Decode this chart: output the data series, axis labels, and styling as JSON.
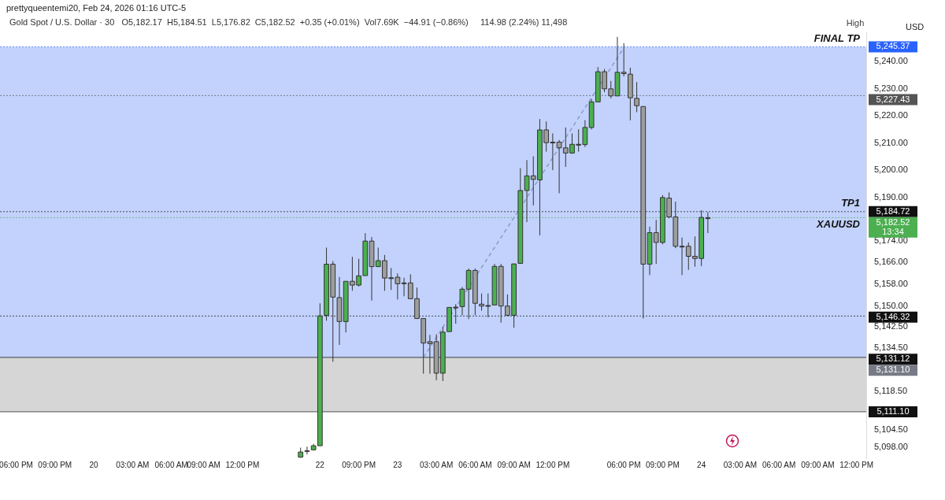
{
  "chart_data": {
    "type": "candlestick",
    "title": "Gold Spot / U.S. Dollar · 30",
    "subtitle": "O5,182.17  H5,184.51  L5,176.82  C5,182.52  +0.35 (+0.01%)  Vol7.69K  −44.91 (−0.86%)     114.98 (2.24%) 11,498",
    "ylabel": "USD",
    "categories": [
      null,
      null,
      "06:00 PM",
      null,
      null,
      null,
      null,
      null,
      "09:00 PM",
      null,
      null,
      null,
      null,
      null,
      "20",
      null,
      null,
      null,
      null,
      null,
      "03:00 AM",
      null,
      null,
      null,
      null,
      null,
      "06:00 AM",
      null,
      null,
      null,
      null,
      "09:00 AM",
      null,
      null,
      null,
      null,
      null,
      "12:00 PM",
      null,
      null,
      null,
      null,
      null,
      null,
      null,
      null,
      null,
      null,
      null,
      "22",
      null,
      null,
      null,
      null,
      null,
      "09:00 PM",
      null,
      null,
      null,
      null,
      null,
      "23",
      null,
      null,
      null,
      null,
      null,
      "03:00 AM",
      null,
      null,
      null,
      null,
      null,
      "06:00 AM",
      null,
      null,
      null,
      null,
      null,
      "09:00 AM",
      null,
      null,
      null,
      null,
      null,
      "12:00 PM",
      null,
      null,
      null,
      null,
      null,
      null,
      null,
      null,
      null,
      null,
      "06:00 PM",
      null,
      null,
      null,
      null,
      null,
      "09:00 PM",
      null,
      null,
      null,
      null,
      null,
      "24",
      null,
      null,
      null,
      null,
      null,
      "03:00 AM",
      null,
      null,
      null,
      null,
      null,
      "06:00 AM",
      null,
      null,
      null,
      null,
      null,
      "09:00 AM",
      null,
      null,
      null,
      null,
      null,
      "12:00 PM",
      null
    ],
    "ohlc": [
      null,
      null,
      null,
      null,
      null,
      null,
      null,
      null,
      null,
      null,
      null,
      null,
      null,
      null,
      null,
      null,
      null,
      null,
      null,
      null,
      null,
      null,
      null,
      null,
      null,
      null,
      null,
      null,
      null,
      null,
      null,
      null,
      null,
      null,
      null,
      null,
      null,
      null,
      null,
      null,
      null,
      null,
      null,
      null,
      null,
      null,
      [
        5094.4,
        5097.9,
        5094.2,
        5096.3
      ],
      [
        5096.8,
        5098.3,
        5095.4,
        5096.8
      ],
      [
        5097.1,
        5099.3,
        5097.1,
        5098.6
      ],
      [
        5098.6,
        5151,
        5098.6,
        5146.4
      ],
      [
        5146.6,
        5171.5,
        5144.6,
        5165.4
      ],
      [
        5165.4,
        5166.5,
        5129.5,
        5153.3
      ],
      [
        5153.1,
        5160.7,
        5135.7,
        5144.3
      ],
      [
        5144.3,
        5159.1,
        5140.3,
        5159.1
      ],
      [
        5159.1,
        5168.1,
        5155.6,
        5157.7
      ],
      [
        5157.7,
        5167.4,
        5157.2,
        5161.1
      ],
      [
        5161.2,
        5176.8,
        5161.2,
        5173.9
      ],
      [
        5173.9,
        5175.4,
        5152,
        5164.5
      ],
      [
        5164.5,
        5171.5,
        5164.5,
        5166.7
      ],
      [
        5166.7,
        5168.8,
        5155.6,
        5160.3
      ],
      [
        5160.4,
        5164,
        5155.9,
        5160.4
      ],
      [
        5160.6,
        5162,
        5152.4,
        5158.2
      ],
      [
        5158.5,
        5160.4,
        5153.6,
        5158.5
      ],
      [
        5158.5,
        5161.7,
        5152.7,
        5152.7
      ],
      [
        5152.7,
        5156.8,
        5145.4,
        5145.4
      ],
      [
        5145.4,
        5145.4,
        5125.1,
        5136.4
      ],
      [
        5136.9,
        5139.4,
        5125.1,
        5136.2
      ],
      [
        5136.9,
        5139.6,
        5122.7,
        5125.3
      ],
      [
        5125.3,
        5142.3,
        5122.4,
        5140.4
      ],
      [
        5140.6,
        5149.5,
        5140.6,
        5149.5
      ],
      [
        5149.6,
        5150.7,
        5143.5,
        5149.6
      ],
      [
        5149.8,
        5157,
        5146.6,
        5156.2
      ],
      [
        5156.2,
        5163.8,
        5145.2,
        5163.1
      ],
      [
        5163.1,
        5163.8,
        5146.6,
        5151
      ],
      [
        5150.7,
        5154.6,
        5148.3,
        5150
      ],
      [
        5150.2,
        5154.6,
        5145.9,
        5150.2
      ],
      [
        5150.4,
        5165.5,
        5150.4,
        5164.6
      ],
      [
        5164.6,
        5165.5,
        5143.9,
        5150
      ],
      [
        5150,
        5154.3,
        5146.6,
        5146.6
      ],
      [
        5146.6,
        5165.5,
        5142,
        5165.5
      ],
      [
        5165.7,
        5200.7,
        5165.7,
        5192.5
      ],
      [
        5192.5,
        5203.7,
        5180.9,
        5197.9
      ],
      [
        5197.9,
        5205.1,
        5187,
        5196.6
      ],
      [
        5196.4,
        5218.8,
        5176,
        5214.8
      ],
      [
        5214.8,
        5217.9,
        5206.8,
        5210.1
      ],
      [
        5210.3,
        5213.5,
        5200,
        5210.3
      ],
      [
        5210.3,
        5211.1,
        5191.5,
        5208.2
      ],
      [
        5208.2,
        5215.7,
        5201.2,
        5206.3
      ],
      [
        5206.3,
        5213.5,
        5206,
        5209.5
      ],
      [
        5209.5,
        5215,
        5206.8,
        5209.5
      ],
      [
        5209.4,
        5218.4,
        5208.5,
        5215.7
      ],
      [
        5215.7,
        5226.1,
        5215,
        5225.1
      ],
      [
        5225.1,
        5237.9,
        5225.1,
        5236.2
      ],
      [
        5236.2,
        5237.2,
        5228.7,
        5229.9
      ],
      [
        5229.9,
        5232.8,
        5226.4,
        5227.3
      ],
      [
        5227.3,
        5249,
        5227.3,
        5236
      ],
      [
        5236,
        5246.7,
        5234.5,
        5235.5
      ],
      [
        5235.3,
        5237.7,
        5218.3,
        5226.6
      ],
      [
        5226.4,
        5232.4,
        5221.3,
        5223.7
      ],
      [
        5223.4,
        5223.4,
        5145.4,
        5165.4
      ],
      [
        5165.4,
        5179.2,
        5161.4,
        5177
      ],
      [
        5177,
        5181.7,
        5165.5,
        5173.4
      ],
      [
        5173.4,
        5190.8,
        5172.7,
        5189.9
      ],
      [
        5189.7,
        5191.8,
        5182.3,
        5182.8
      ],
      [
        5182.8,
        5188.4,
        5171.3,
        5172
      ],
      [
        5172,
        5175.2,
        5161.4,
        5172
      ],
      [
        5172,
        5173.4,
        5163.3,
        5168.3
      ],
      [
        5168.3,
        5175.6,
        5164.5,
        5167.5
      ],
      [
        5167.5,
        5185.2,
        5164.7,
        5182.6
      ],
      [
        5182.17,
        5184.51,
        5176.82,
        5182.52
      ],
      null,
      null,
      null,
      null,
      null,
      null,
      null,
      null,
      null,
      null,
      null,
      null,
      null,
      null,
      null,
      null,
      null,
      null,
      null,
      null,
      null,
      null,
      null,
      null
    ],
    "colors": [
      null,
      null,
      null,
      null,
      null,
      null,
      null,
      null,
      null,
      null,
      null,
      null,
      null,
      null,
      null,
      null,
      null,
      null,
      null,
      null,
      null,
      null,
      null,
      null,
      null,
      null,
      null,
      null,
      null,
      null,
      null,
      null,
      null,
      null,
      null,
      null,
      null,
      null,
      null,
      null,
      null,
      null,
      null,
      null,
      null,
      null,
      "#4caf50",
      "#555555",
      "#4caf50",
      "#4caf50",
      "#4caf50",
      "#9e9e9e",
      "#9e9e9e",
      "#4caf50",
      "#9e9e9e",
      "#4caf50",
      "#4caf50",
      "#9e9e9e",
      "#4caf50",
      "#9e9e9e",
      "#555555",
      "#9e9e9e",
      "#555555",
      "#9e9e9e",
      "#9e9e9e",
      "#9e9e9e",
      "#9e9e9e",
      "#9e9e9e",
      "#4caf50",
      "#4caf50",
      "#555555",
      "#4caf50",
      "#4caf50",
      "#9e9e9e",
      "#9e9e9e",
      "#555555",
      "#4caf50",
      "#9e9e9e",
      "#9e9e9e",
      "#4caf50",
      "#4caf50",
      "#4caf50",
      "#9e9e9e",
      "#4caf50",
      "#9e9e9e",
      "#555555",
      "#9e9e9e",
      "#9e9e9e",
      "#4caf50",
      "#555555",
      "#4caf50",
      "#4caf50",
      "#4caf50",
      "#9e9e9e",
      "#9e9e9e",
      "#4caf50",
      "#9e9e9e",
      "#9e9e9e",
      "#9e9e9e",
      "#9e9e9e",
      "#4caf50",
      "#9e9e9e",
      "#4caf50",
      "#9e9e9e",
      "#9e9e9e",
      "#555555",
      "#9e9e9e",
      "#9e9e9e",
      "#4caf50",
      "#4caf50",
      null,
      null,
      null,
      null,
      null,
      null,
      null,
      null,
      null,
      null,
      null,
      null,
      null,
      null,
      null,
      null,
      null,
      null,
      null,
      null,
      null,
      null,
      null,
      null
    ],
    "series": [
      {
        "type": "line",
        "color": "#8a9bc4",
        "line_style": "dashed",
        "values": [
          null,
          null,
          null,
          null,
          null,
          null,
          null,
          null,
          null,
          null,
          null,
          null,
          null,
          null,
          null,
          null,
          null,
          null,
          null,
          null,
          null,
          null,
          null,
          null,
          null,
          null,
          null,
          null,
          null,
          null,
          null,
          null,
          null,
          null,
          null,
          null,
          null,
          null,
          null,
          null,
          null,
          null,
          null,
          null,
          null,
          null,
          null,
          null,
          null,
          null,
          null,
          null,
          null,
          null,
          null,
          null,
          null,
          null,
          null,
          null,
          null,
          null,
          null,
          null,
          null,
          5131.1,
          null,
          null,
          null,
          null,
          null,
          null,
          null,
          null,
          null,
          null,
          null,
          null,
          null,
          null,
          null,
          null,
          null,
          null,
          null,
          null,
          null,
          null,
          null,
          null,
          null,
          null,
          null,
          null,
          null,
          null,
          5245,
          null,
          null,
          null,
          null,
          null,
          null,
          null,
          null,
          null,
          null,
          null,
          null,
          null,
          null,
          null,
          null,
          null,
          null,
          null,
          null,
          null,
          null,
          null,
          null,
          null,
          null,
          null,
          null,
          null,
          null,
          null,
          null,
          null,
          null,
          null,
          null,
          null
        ]
      }
    ],
    "ylim": [
      5094,
      5251
    ],
    "yticks": [
      {
        "value": 5098,
        "label": "5,098.00"
      },
      {
        "value": 5104.5,
        "label": "5,104.50"
      },
      {
        "value": 5118.5,
        "label": "5,118.50"
      },
      {
        "value": 5134.5,
        "label": "5,134.50"
      },
      {
        "value": 5142.5,
        "label": "5,142.50"
      },
      {
        "value": 5150,
        "label": "5,150.00"
      },
      {
        "value": 5158,
        "label": "5,158.00"
      },
      {
        "value": 5166,
        "label": "5,166.00"
      },
      {
        "value": 5174,
        "label": "5,174.00"
      },
      {
        "value": 5190,
        "label": "5,190.00"
      },
      {
        "value": 5200,
        "label": "5,200.00"
      },
      {
        "value": 5210,
        "label": "5,210.00"
      },
      {
        "value": 5220,
        "label": "5,220.00"
      },
      {
        "value": 5230,
        "label": "5,230.00"
      },
      {
        "value": 5240,
        "label": "5,240.00"
      }
    ],
    "bands": [
      {
        "axis": "y",
        "from": 5131.1,
        "to": 5245.37,
        "color": "#b3c7fb"
      },
      {
        "axis": "y",
        "from": 5111.1,
        "to": 5131.1,
        "color": "#cccccc"
      }
    ],
    "ref_lines": [
      {
        "axis": "y",
        "value": 5245.37,
        "label": "5,245.37",
        "color": "#2962ff",
        "line_style": "dotted"
      },
      {
        "axis": "y",
        "value": 5227.43,
        "label": "5,227.43",
        "color": "#555555",
        "line_style": "dotted"
      },
      {
        "axis": "y",
        "value": 5184.72,
        "label": "5,184.72",
        "color": "#111111",
        "line_style": "dotted"
      },
      {
        "axis": "y",
        "value": 5182.52,
        "label": "5,182.52",
        "color": "#4caf50",
        "line_style": "dotted"
      },
      {
        "axis": "y",
        "value": 5146.32,
        "label": "5,146.32",
        "color": "#111111",
        "line_style": "dotted"
      },
      {
        "axis": "y",
        "value": 5131.12,
        "label": "5,131.12",
        "color": "#111111",
        "line_style": "solid"
      },
      {
        "axis": "y",
        "value": 5131.1,
        "label": "5,131.10",
        "color": "#787b86",
        "line_style": "solid"
      },
      {
        "axis": "y",
        "value": 5111.1,
        "label": "5,111.10",
        "color": "#111111",
        "line_style": "solid"
      }
    ],
    "annotations": [
      {
        "text": "FINAL TP",
        "y": 5245.37
      },
      {
        "text": "TP1",
        "y": 5184.72
      },
      {
        "text": "XAUUSD",
        "y": 5182.52
      },
      "13:34",
      "High",
      "prettyqueentemi20, Feb 24, 2026 01:16 UTC-5"
    ],
    "grid": false,
    "legend": false
  }
}
